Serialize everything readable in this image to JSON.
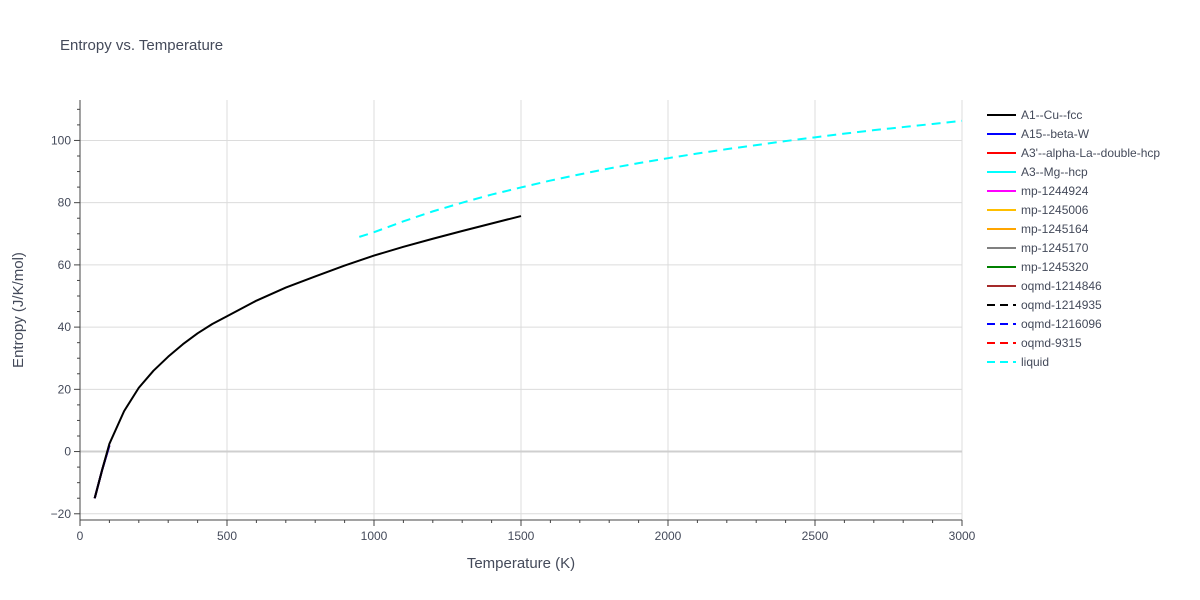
{
  "chart_data": {
    "type": "line",
    "title": "Entropy vs. Temperature",
    "xlabel": "Temperature (K)",
    "ylabel": "Entropy (J/K/mol)",
    "xlim": [
      0,
      3000
    ],
    "ylim": [
      -22,
      113
    ],
    "x_ticks": [
      0,
      500,
      1000,
      1500,
      2000,
      2500,
      3000
    ],
    "y_ticks": [
      -20,
      0,
      20,
      40,
      60,
      80,
      100
    ],
    "grid": true,
    "legend_position": "right",
    "series": [
      {
        "name": "A1--Cu--fcc",
        "color": "#000000",
        "dash": "solid",
        "x": [
          50,
          75,
          100,
          150,
          200,
          250,
          300,
          350,
          400,
          450,
          500,
          600,
          700,
          800,
          900,
          1000,
          1100,
          1200,
          1300,
          1400,
          1500
        ],
        "y": [
          -15,
          -6,
          2.5,
          13,
          20.5,
          26,
          30.5,
          34.5,
          38,
          41,
          43.5,
          48.5,
          52.7,
          56.3,
          59.8,
          63,
          65.8,
          68.4,
          70.9,
          73.3,
          75.7
        ]
      },
      {
        "name": "A15--beta-W",
        "color": "#0000ff",
        "dash": "solid",
        "x": [
          50,
          75,
          100
        ],
        "y": [
          -15,
          -6,
          2
        ]
      },
      {
        "name": "A3'--alpha-La--double-hcp",
        "color": "#ff0000",
        "dash": "solid",
        "x": [
          50,
          75,
          100
        ],
        "y": [
          -15,
          -6,
          2
        ]
      },
      {
        "name": "A3--Mg--hcp",
        "color": "#00ffff",
        "dash": "solid",
        "x": [
          50,
          75,
          100
        ],
        "y": [
          -15,
          -6,
          2
        ]
      },
      {
        "name": "mp-1244924",
        "color": "#ff00ff",
        "dash": "solid",
        "x": [
          50,
          75,
          100
        ],
        "y": [
          -15,
          -6,
          2
        ]
      },
      {
        "name": "mp-1245006",
        "color": "#ffbf00",
        "dash": "solid",
        "x": [
          50,
          75,
          100
        ],
        "y": [
          -15,
          -6,
          2
        ]
      },
      {
        "name": "mp-1245164",
        "color": "#ffa500",
        "dash": "solid",
        "x": [
          50,
          75,
          100
        ],
        "y": [
          -15,
          -6,
          2
        ]
      },
      {
        "name": "mp-1245170",
        "color": "#808080",
        "dash": "solid",
        "x": [
          50,
          75,
          100
        ],
        "y": [
          -15,
          -6,
          2
        ]
      },
      {
        "name": "mp-1245320",
        "color": "#008000",
        "dash": "solid",
        "x": [
          50,
          75,
          100
        ],
        "y": [
          -15,
          -6,
          2
        ]
      },
      {
        "name": "oqmd-1214846",
        "color": "#a52a2a",
        "dash": "solid",
        "x": [
          50,
          75,
          100
        ],
        "y": [
          -15,
          -6,
          2
        ]
      },
      {
        "name": "oqmd-1214935",
        "color": "#000000",
        "dash": "dash",
        "x": [
          50,
          75,
          100
        ],
        "y": [
          -15,
          -6,
          2
        ]
      },
      {
        "name": "oqmd-1216096",
        "color": "#0000ff",
        "dash": "dash",
        "x": [
          50,
          75,
          100
        ],
        "y": [
          -15,
          -6,
          2
        ]
      },
      {
        "name": "oqmd-9315",
        "color": "#ff0000",
        "dash": "dash",
        "x": [
          50,
          75,
          100
        ],
        "y": [
          -15,
          -6,
          2
        ]
      },
      {
        "name": "liquid",
        "color": "#00ffff",
        "dash": "dash",
        "x": [
          950,
          1000,
          1100,
          1200,
          1300,
          1400,
          1500,
          1600,
          1700,
          1800,
          1900,
          2000,
          2100,
          2200,
          2300,
          2400,
          2500,
          2600,
          2700,
          2800,
          2900,
          3000
        ],
        "y": [
          69,
          70.5,
          74,
          77.2,
          80,
          82.6,
          84.9,
          87.1,
          89.1,
          91,
          92.7,
          94.3,
          95.8,
          97.2,
          98.5,
          99.8,
          101,
          102.2,
          103.3,
          104.3,
          105.3,
          106.3
        ]
      }
    ]
  }
}
